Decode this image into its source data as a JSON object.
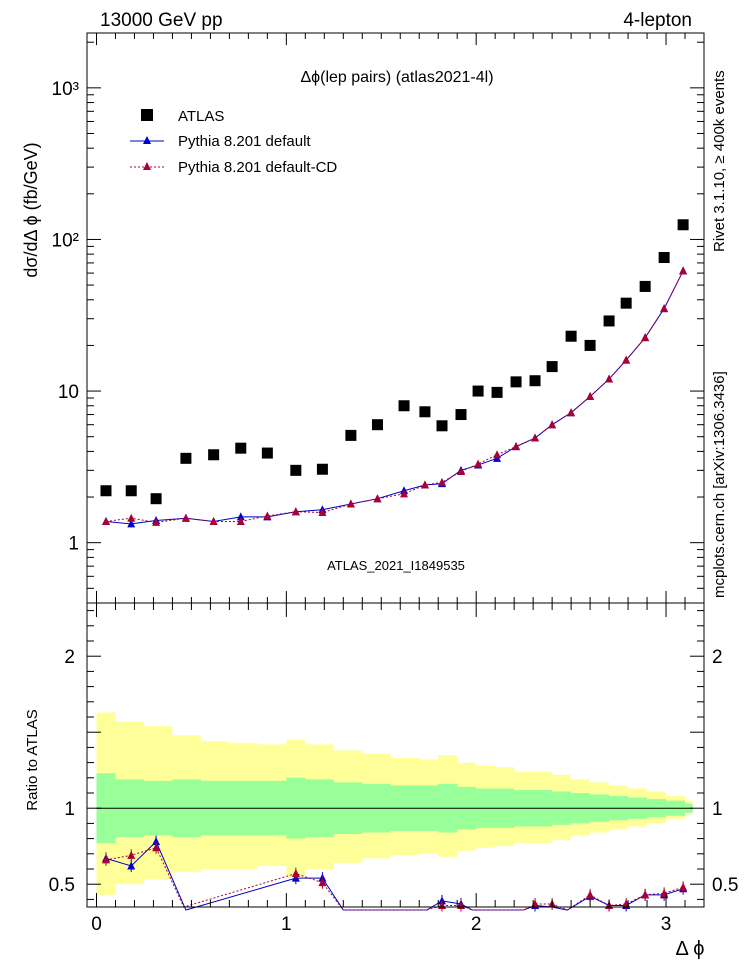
{
  "header": {
    "left": "13000 GeV pp",
    "right": "4-lepton",
    "right_side_rivet": "Rivet 3.1.10, ≥ 400k events",
    "right_side_mcplots": "mcplots.cern.ch [arXiv:1306.3436]"
  },
  "chart_data": [
    {
      "type": "scatter",
      "title": "Δϕ(lep pairs) (atlas2021-4l)",
      "ylabel": "dσ/dΔ ϕ (fb/GeV)",
      "watermark": "ATLAS_2021_I1849535",
      "yscale": "log",
      "xlim": [
        -0.05,
        3.2
      ],
      "ylim": [
        0.4,
        2300
      ],
      "x_ticks": [
        0,
        1,
        2,
        3
      ],
      "y_ticks": [
        1,
        10,
        100,
        1000
      ],
      "y_tick_labels": [
        "1",
        "10",
        "10²",
        "10³"
      ],
      "legend_position": "top-left",
      "x": [
        0.05,
        0.183,
        0.314,
        0.471,
        0.617,
        0.76,
        0.9,
        1.05,
        1.19,
        1.34,
        1.48,
        1.62,
        1.73,
        1.82,
        1.92,
        2.01,
        2.11,
        2.21,
        2.31,
        2.4,
        2.5,
        2.6,
        2.7,
        2.79,
        2.89,
        2.99,
        3.09
      ],
      "series": [
        {
          "name": "ATLAS",
          "color": "#000000",
          "marker": "square",
          "values": [
            2.2,
            2.2,
            1.95,
            3.6,
            3.8,
            4.2,
            3.9,
            3.0,
            3.05,
            5.1,
            6.0,
            8.0,
            7.3,
            5.9,
            7.0,
            10.0,
            9.8,
            11.5,
            11.7,
            14.5,
            23,
            20,
            29,
            38,
            49,
            76,
            125
          ]
        },
        {
          "name": "Pythia 8.201 default",
          "color": "#0000cc",
          "marker": "triangle",
          "line": "solid",
          "values": [
            1.38,
            1.33,
            1.4,
            1.45,
            1.38,
            1.48,
            1.48,
            1.6,
            1.65,
            1.8,
            1.95,
            2.2,
            2.4,
            2.45,
            3.0,
            3.25,
            3.6,
            4.3,
            4.9,
            6.0,
            7.2,
            9.2,
            12.0,
            16.0,
            22.5,
            35.0,
            62.0
          ]
        },
        {
          "name": "Pythia 8.201 default-CD",
          "color": "#aa0033",
          "marker": "triangle",
          "line": "dotted",
          "values": [
            1.38,
            1.45,
            1.36,
            1.45,
            1.38,
            1.38,
            1.5,
            1.6,
            1.58,
            1.8,
            1.95,
            2.1,
            2.4,
            2.5,
            2.95,
            3.3,
            3.8,
            4.3,
            4.9,
            6.0,
            7.2,
            9.2,
            12.0,
            16.0,
            22.5,
            35.0,
            62.0
          ]
        }
      ]
    },
    {
      "type": "line",
      "ylabel": "Ratio to ATLAS",
      "xlabel": "Δ ϕ",
      "xlim": [
        -0.05,
        3.2
      ],
      "ylim": [
        0.35,
        2.35
      ],
      "x_ticks": [
        0,
        1,
        2,
        3
      ],
      "y_ticks": [
        0.5,
        1,
        1.5,
        2
      ],
      "y_tick_labels": [
        "0.5",
        "1",
        "",
        "2"
      ],
      "reference_line": 1,
      "bin_edges": [
        0.0,
        0.1,
        0.25,
        0.4,
        0.55,
        0.7,
        0.85,
        1.0,
        1.1,
        1.25,
        1.4,
        1.55,
        1.7,
        1.8,
        1.9,
        2.0,
        2.1,
        2.2,
        2.3,
        2.4,
        2.5,
        2.6,
        2.7,
        2.8,
        2.9,
        3.0,
        3.1,
        3.14
      ],
      "band_green": {
        "color": "#99ff99",
        "low": [
          0.77,
          0.81,
          0.82,
          0.81,
          0.82,
          0.82,
          0.82,
          0.8,
          0.81,
          0.83,
          0.84,
          0.85,
          0.85,
          0.84,
          0.86,
          0.87,
          0.87,
          0.88,
          0.88,
          0.89,
          0.9,
          0.91,
          0.92,
          0.93,
          0.94,
          0.95,
          0.97
        ],
        "high": [
          1.23,
          1.19,
          1.18,
          1.19,
          1.18,
          1.18,
          1.18,
          1.2,
          1.19,
          1.17,
          1.16,
          1.15,
          1.15,
          1.16,
          1.14,
          1.13,
          1.13,
          1.12,
          1.12,
          1.11,
          1.1,
          1.09,
          1.08,
          1.07,
          1.06,
          1.05,
          1.03
        ]
      },
      "band_yellow": {
        "color": "#ffff99",
        "low": [
          0.43,
          0.5,
          0.53,
          0.58,
          0.6,
          0.6,
          0.62,
          0.55,
          0.6,
          0.64,
          0.67,
          0.69,
          0.7,
          0.68,
          0.72,
          0.74,
          0.75,
          0.77,
          0.77,
          0.79,
          0.82,
          0.84,
          0.86,
          0.88,
          0.9,
          0.93,
          0.96
        ],
        "high": [
          1.63,
          1.57,
          1.54,
          1.48,
          1.44,
          1.43,
          1.42,
          1.45,
          1.42,
          1.38,
          1.36,
          1.33,
          1.32,
          1.35,
          1.3,
          1.28,
          1.27,
          1.24,
          1.24,
          1.22,
          1.19,
          1.17,
          1.15,
          1.13,
          1.11,
          1.08,
          1.05
        ]
      },
      "series": [
        {
          "name": "Pythia 8.201 default",
          "color": "#0000cc",
          "x": [
            0.05,
            0.183,
            0.314,
            0.471,
            1.05,
            1.19,
            1.3,
            1.74,
            1.82,
            1.92,
            1.98,
            2.25,
            2.31,
            2.4,
            2.48,
            2.6,
            2.7,
            2.79,
            2.89,
            2.99,
            3.09
          ],
          "values": [
            0.67,
            0.62,
            0.78,
            0.33,
            0.54,
            0.54,
            0.33,
            0.33,
            0.39,
            0.37,
            0.33,
            0.33,
            0.36,
            0.35,
            0.33,
            0.42,
            0.36,
            0.36,
            0.43,
            0.43,
            0.47
          ]
        },
        {
          "name": "Pythia 8.201 default-CD",
          "color": "#aa0033",
          "x": [
            0.05,
            0.183,
            0.314,
            0.46,
            1.05,
            1.19,
            1.3,
            1.74,
            1.82,
            1.92,
            1.98,
            2.25,
            2.31,
            2.4,
            2.48,
            2.6,
            2.7,
            2.79,
            2.89,
            2.99,
            3.09
          ],
          "values": [
            0.66,
            0.69,
            0.74,
            0.35,
            0.57,
            0.51,
            0.33,
            0.33,
            0.36,
            0.36,
            0.33,
            0.33,
            0.37,
            0.37,
            0.33,
            0.43,
            0.36,
            0.37,
            0.43,
            0.44,
            0.48
          ]
        }
      ]
    }
  ]
}
